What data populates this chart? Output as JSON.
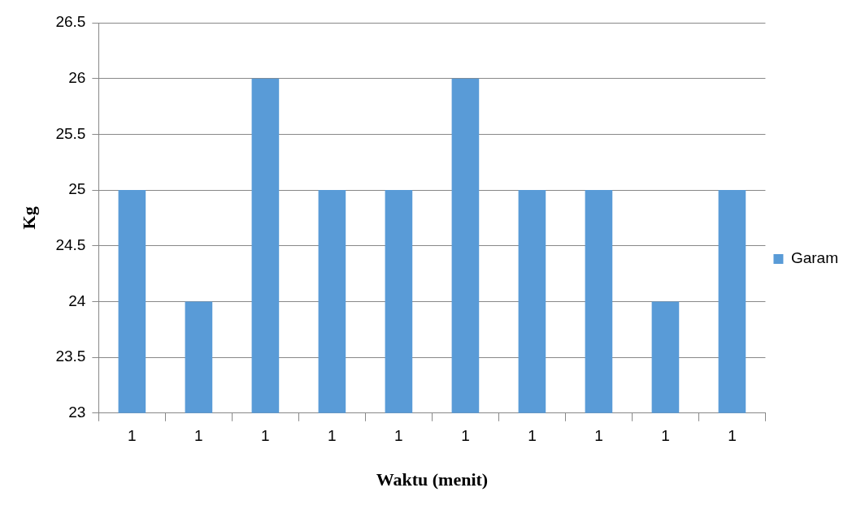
{
  "chart_data": {
    "type": "bar",
    "xlabel": "Waktu (menit)",
    "ylabel": "Kg",
    "categories": [
      "1",
      "1",
      "1",
      "1",
      "1",
      "1",
      "1",
      "1",
      "1",
      "1"
    ],
    "series": [
      {
        "name": "Garam",
        "color": "#599bd7",
        "values": [
          25,
          24,
          26,
          25,
          25,
          26,
          25,
          25,
          24,
          25
        ]
      }
    ],
    "ylim": [
      23,
      26.5
    ],
    "yticks": [
      23,
      23.5,
      24,
      24.5,
      25,
      25.5,
      26,
      26.5
    ],
    "grid": "y",
    "legend": "right"
  }
}
